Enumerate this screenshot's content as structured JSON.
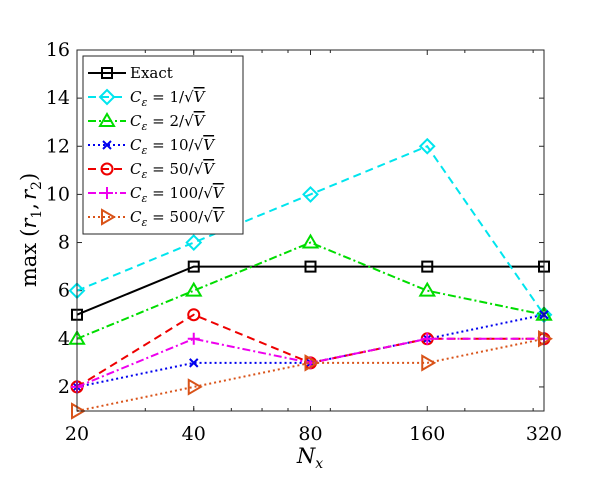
{
  "chart_data": {
    "type": "line",
    "x_scale": "log2",
    "x": [
      20,
      40,
      80,
      160,
      320
    ],
    "xticks": [
      "20",
      "40",
      "80",
      "160",
      "320"
    ],
    "xlim": [
      20,
      320
    ],
    "ylim": [
      1,
      16
    ],
    "yticks": [
      "2",
      "4",
      "6",
      "8",
      "10",
      "12",
      "14",
      "16"
    ],
    "xlabel": {
      "base": "N",
      "sub": "x"
    },
    "ylabel": {
      "prefix": "max",
      "lpar": "(",
      "r1": "r",
      "s1": "1",
      "comma": ",",
      "r2": "r",
      "s2": "2",
      "rpar": ")"
    },
    "legend_position": "upper-left",
    "grid": "vertical minor ticks only",
    "series": [
      {
        "name": "Exact",
        "color": "#000000",
        "dash": "solid",
        "marker": "square",
        "values": [
          5,
          7,
          7,
          7,
          7
        ],
        "label": {
          "pre": "Exact"
        }
      },
      {
        "name": "C_ε = 1/√V",
        "color": "#00e5ee",
        "dash": "dashed",
        "marker": "diamond",
        "values": [
          6,
          8,
          10,
          12,
          5
        ],
        "label": {
          "c": "C",
          "eps": "ε",
          "eq": " = ",
          "num": "1",
          "slash": "/",
          "sqrt": "√",
          "v": "V"
        }
      },
      {
        "name": "C_ε = 2/√V",
        "color": "#00dd00",
        "dash": "dashdot",
        "marker": "triangle-up",
        "values": [
          4,
          6,
          8,
          6,
          5
        ],
        "label": {
          "c": "C",
          "eps": "ε",
          "eq": " = ",
          "num": "2",
          "slash": "/",
          "sqrt": "√",
          "v": "V"
        }
      },
      {
        "name": "C_ε = 10/√V",
        "color": "#0000ee",
        "dash": "dotted",
        "marker": "x",
        "values": [
          2,
          3,
          3,
          4,
          5
        ],
        "label": {
          "c": "C",
          "eps": "ε",
          "eq": " = ",
          "num": "10",
          "slash": "/",
          "sqrt": "√",
          "v": "V"
        }
      },
      {
        "name": "C_ε = 50/√V",
        "color": "#ee0000",
        "dash": "dashed",
        "marker": "circle",
        "values": [
          2,
          5,
          3,
          4,
          4
        ],
        "label": {
          "c": "C",
          "eps": "ε",
          "eq": " = ",
          "num": "50",
          "slash": "/",
          "sqrt": "√",
          "v": "V"
        }
      },
      {
        "name": "C_ε = 100/√V",
        "color": "#ee00ee",
        "dash": "dashdot",
        "marker": "plus",
        "values": [
          2,
          4,
          3,
          4,
          4
        ],
        "label": {
          "c": "C",
          "eps": "ε",
          "eq": " = ",
          "num": "100",
          "slash": "/",
          "sqrt": "√",
          "v": "V"
        }
      },
      {
        "name": "C_ε = 500/√V",
        "color": "#d95319",
        "dash": "dotted",
        "marker": "triangle-right",
        "values": [
          1,
          2,
          3,
          3,
          4
        ],
        "label": {
          "c": "C",
          "eps": "ε",
          "eq": " = ",
          "num": "500",
          "slash": "/",
          "sqrt": "√",
          "v": "V"
        }
      }
    ]
  }
}
